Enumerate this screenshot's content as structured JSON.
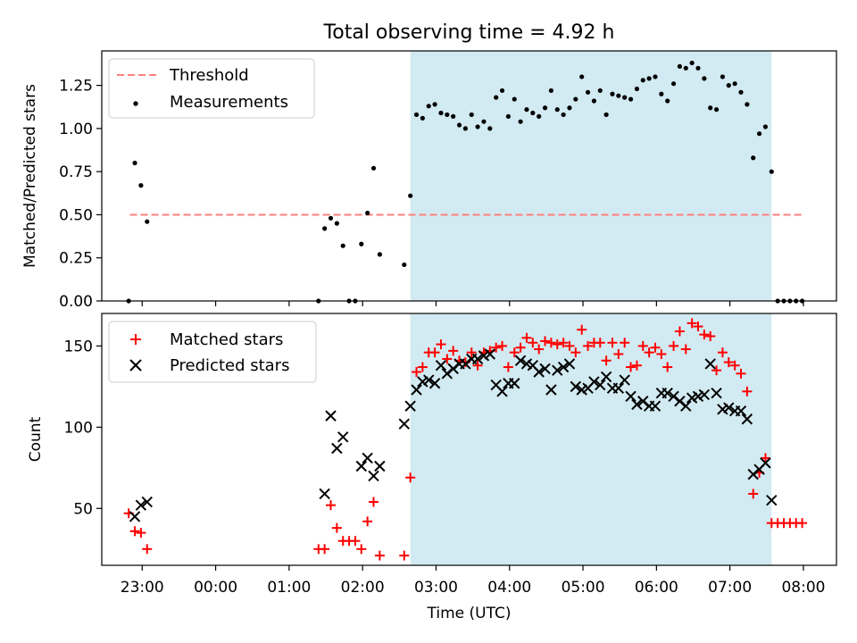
{
  "figure": {
    "title": "Total observing time = 4.92 h",
    "xlabel": "Time (UTC)"
  },
  "chart_data": [
    {
      "type": "scatter",
      "panel": "top",
      "ylabel": "Matched/Predicted stars",
      "xlim": [
        "22:27",
        "08:27"
      ],
      "ylim": [
        0,
        1.45
      ],
      "yticks": [
        "0.00",
        "0.25",
        "0.50",
        "0.75",
        "1.00",
        "1.25"
      ],
      "ytick_values": [
        0,
        0.25,
        0.5,
        0.75,
        1.0,
        1.25
      ],
      "grid": false,
      "legend_position": "top-left",
      "legend": [
        "Threshold",
        "Measurements"
      ],
      "shaded_interval": {
        "x": [
          "02:39",
          "07:34"
        ],
        "color": "#add8e6"
      },
      "series": [
        {
          "name": "Threshold",
          "type": "line",
          "style": "dashed",
          "color": "#ff7f7f",
          "points": [
            [
              "22:50",
              0.5
            ],
            [
              "08:00",
              0.5
            ]
          ]
        },
        {
          "name": "Measurements",
          "type": "scatter",
          "color": "#000000",
          "points": [
            [
              "22:49",
              0.0
            ],
            [
              "22:54",
              0.8
            ],
            [
              "22:59",
              0.67
            ],
            [
              "23:04",
              0.46
            ],
            [
              "01:24",
              0.0
            ],
            [
              "01:29",
              0.42
            ],
            [
              "01:34",
              0.48
            ],
            [
              "01:39",
              0.45
            ],
            [
              "01:44",
              0.32
            ],
            [
              "01:49",
              0.0
            ],
            [
              "01:54",
              0.0
            ],
            [
              "01:59",
              0.33
            ],
            [
              "02:04",
              0.51
            ],
            [
              "02:09",
              0.77
            ],
            [
              "02:14",
              0.27
            ],
            [
              "02:34",
              0.21
            ],
            [
              "02:39",
              0.61
            ],
            [
              "02:44",
              1.08
            ],
            [
              "02:49",
              1.06
            ],
            [
              "02:54",
              1.13
            ],
            [
              "02:59",
              1.14
            ],
            [
              "03:04",
              1.09
            ],
            [
              "03:09",
              1.08
            ],
            [
              "03:14",
              1.07
            ],
            [
              "03:19",
              1.02
            ],
            [
              "03:24",
              1.0
            ],
            [
              "03:29",
              1.08
            ],
            [
              "03:34",
              1.01
            ],
            [
              "03:39",
              1.04
            ],
            [
              "03:44",
              1.0
            ],
            [
              "03:49",
              1.18
            ],
            [
              "03:54",
              1.22
            ],
            [
              "03:59",
              1.07
            ],
            [
              "04:04",
              1.17
            ],
            [
              "04:09",
              1.04
            ],
            [
              "04:14",
              1.11
            ],
            [
              "04:19",
              1.09
            ],
            [
              "04:24",
              1.07
            ],
            [
              "04:29",
              1.12
            ],
            [
              "04:34",
              1.22
            ],
            [
              "04:39",
              1.11
            ],
            [
              "04:44",
              1.08
            ],
            [
              "04:49",
              1.12
            ],
            [
              "04:54",
              1.17
            ],
            [
              "04:59",
              1.3
            ],
            [
              "05:04",
              1.21
            ],
            [
              "05:09",
              1.16
            ],
            [
              "05:14",
              1.22
            ],
            [
              "05:19",
              1.08
            ],
            [
              "05:24",
              1.2
            ],
            [
              "05:29",
              1.19
            ],
            [
              "05:34",
              1.18
            ],
            [
              "05:39",
              1.17
            ],
            [
              "05:44",
              1.23
            ],
            [
              "05:49",
              1.28
            ],
            [
              "05:54",
              1.29
            ],
            [
              "05:59",
              1.3
            ],
            [
              "06:04",
              1.2
            ],
            [
              "06:09",
              1.16
            ],
            [
              "06:14",
              1.26
            ],
            [
              "06:19",
              1.36
            ],
            [
              "06:24",
              1.35
            ],
            [
              "06:29",
              1.38
            ],
            [
              "06:34",
              1.35
            ],
            [
              "06:39",
              1.29
            ],
            [
              "06:44",
              1.12
            ],
            [
              "06:49",
              1.11
            ],
            [
              "06:54",
              1.3
            ],
            [
              "06:59",
              1.25
            ],
            [
              "07:04",
              1.26
            ],
            [
              "07:09",
              1.21
            ],
            [
              "07:14",
              1.14
            ],
            [
              "07:19",
              0.83
            ],
            [
              "07:24",
              0.97
            ],
            [
              "07:29",
              1.01
            ],
            [
              "07:34",
              0.75
            ],
            [
              "07:39",
              0.0
            ],
            [
              "07:44",
              0.0
            ],
            [
              "07:49",
              0.0
            ],
            [
              "07:54",
              0.0
            ],
            [
              "07:59",
              0.0
            ]
          ]
        }
      ]
    },
    {
      "type": "scatter",
      "panel": "bottom",
      "ylabel": "Count",
      "xlabel": "Time (UTC)",
      "xlim": [
        "22:27",
        "08:27"
      ],
      "ylim": [
        15,
        170
      ],
      "yticks": [
        "50",
        "100",
        "150"
      ],
      "ytick_values": [
        50,
        100,
        150
      ],
      "xticks": [
        "23:00",
        "00:00",
        "01:00",
        "02:00",
        "03:00",
        "04:00",
        "05:00",
        "06:00",
        "07:00",
        "08:00"
      ],
      "grid": false,
      "legend_position": "top-left",
      "legend": [
        "Matched stars",
        "Predicted stars"
      ],
      "shaded_interval": {
        "x": [
          "02:39",
          "07:34"
        ],
        "color": "#add8e6"
      },
      "series": [
        {
          "name": "Matched stars",
          "marker": "+",
          "color": "#ff0000",
          "points": [
            [
              "22:49",
              47
            ],
            [
              "22:54",
              36
            ],
            [
              "22:59",
              35
            ],
            [
              "23:04",
              25
            ],
            [
              "01:24",
              25
            ],
            [
              "01:29",
              25
            ],
            [
              "01:34",
              52
            ],
            [
              "01:39",
              38
            ],
            [
              "01:44",
              30
            ],
            [
              "01:49",
              30
            ],
            [
              "01:54",
              30
            ],
            [
              "01:59",
              25
            ],
            [
              "02:04",
              42
            ],
            [
              "02:09",
              54
            ],
            [
              "02:14",
              21
            ],
            [
              "02:34",
              21
            ],
            [
              "02:39",
              69
            ],
            [
              "02:44",
              134
            ],
            [
              "02:49",
              137
            ],
            [
              "02:54",
              146
            ],
            [
              "02:59",
              146
            ],
            [
              "03:04",
              151
            ],
            [
              "03:09",
              142
            ],
            [
              "03:14",
              147
            ],
            [
              "03:19",
              141
            ],
            [
              "03:24",
              140
            ],
            [
              "03:29",
              146
            ],
            [
              "03:34",
              138
            ],
            [
              "03:39",
              146
            ],
            [
              "03:44",
              147
            ],
            [
              "03:49",
              149
            ],
            [
              "03:54",
              150
            ],
            [
              "03:59",
              137
            ],
            [
              "04:04",
              146
            ],
            [
              "04:09",
              149
            ],
            [
              "04:14",
              155
            ],
            [
              "04:19",
              152
            ],
            [
              "04:24",
              148
            ],
            [
              "04:29",
              153
            ],
            [
              "04:34",
              152
            ],
            [
              "04:39",
              151
            ],
            [
              "04:44",
              152
            ],
            [
              "04:49",
              150
            ],
            [
              "04:54",
              146
            ],
            [
              "04:59",
              160
            ],
            [
              "05:04",
              150
            ],
            [
              "05:09",
              152
            ],
            [
              "05:14",
              152
            ],
            [
              "05:19",
              141
            ],
            [
              "05:24",
              152
            ],
            [
              "05:29",
              145
            ],
            [
              "05:34",
              152
            ],
            [
              "05:39",
              137
            ],
            [
              "05:44",
              138
            ],
            [
              "05:49",
              150
            ],
            [
              "05:54",
              146
            ],
            [
              "05:59",
              149
            ],
            [
              "06:04",
              145
            ],
            [
              "06:09",
              137
            ],
            [
              "06:14",
              150
            ],
            [
              "06:19",
              159
            ],
            [
              "06:24",
              148
            ],
            [
              "06:29",
              164
            ],
            [
              "06:34",
              162
            ],
            [
              "06:39",
              157
            ],
            [
              "06:44",
              156
            ],
            [
              "06:49",
              135
            ],
            [
              "06:54",
              146
            ],
            [
              "06:59",
              140
            ],
            [
              "07:04",
              138
            ],
            [
              "07:09",
              133
            ],
            [
              "07:14",
              122
            ],
            [
              "07:19",
              59
            ],
            [
              "07:24",
              72
            ],
            [
              "07:29",
              81
            ],
            [
              "07:34",
              41
            ],
            [
              "07:39",
              41
            ],
            [
              "07:44",
              41
            ],
            [
              "07:49",
              41
            ],
            [
              "07:54",
              41
            ],
            [
              "07:59",
              41
            ]
          ]
        },
        {
          "name": "Predicted stars",
          "marker": "x",
          "color": "#000000",
          "points": [
            [
              "22:54",
              45
            ],
            [
              "22:59",
              52
            ],
            [
              "23:04",
              54
            ],
            [
              "01:29",
              59
            ],
            [
              "01:34",
              107
            ],
            [
              "01:39",
              87
            ],
            [
              "01:44",
              94
            ],
            [
              "01:59",
              76
            ],
            [
              "02:04",
              81
            ],
            [
              "02:09",
              70
            ],
            [
              "02:14",
              76
            ],
            [
              "02:34",
              102
            ],
            [
              "02:39",
              113
            ],
            [
              "02:44",
              123
            ],
            [
              "02:49",
              128
            ],
            [
              "02:54",
              129
            ],
            [
              "02:59",
              127
            ],
            [
              "03:04",
              138
            ],
            [
              "03:09",
              133
            ],
            [
              "03:14",
              136
            ],
            [
              "03:19",
              139
            ],
            [
              "03:24",
              139
            ],
            [
              "03:29",
              142
            ],
            [
              "03:34",
              142
            ],
            [
              "03:39",
              144
            ],
            [
              "03:44",
              145
            ],
            [
              "03:49",
              126
            ],
            [
              "03:54",
              122
            ],
            [
              "03:59",
              127
            ],
            [
              "04:04",
              127
            ],
            [
              "04:09",
              141
            ],
            [
              "04:14",
              139
            ],
            [
              "04:19",
              138
            ],
            [
              "04:24",
              134
            ],
            [
              "04:29",
              136
            ],
            [
              "04:34",
              123
            ],
            [
              "04:39",
              135
            ],
            [
              "04:44",
              137
            ],
            [
              "04:49",
              139
            ],
            [
              "04:54",
              125
            ],
            [
              "04:59",
              123
            ],
            [
              "05:04",
              124
            ],
            [
              "05:09",
              128
            ],
            [
              "05:14",
              126
            ],
            [
              "05:19",
              131
            ],
            [
              "05:24",
              124
            ],
            [
              "05:29",
              124
            ],
            [
              "05:34",
              129
            ],
            [
              "05:39",
              119
            ],
            [
              "05:44",
              114
            ],
            [
              "05:49",
              116
            ],
            [
              "05:54",
              113
            ],
            [
              "05:59",
              113
            ],
            [
              "06:04",
              121
            ],
            [
              "06:09",
              121
            ],
            [
              "06:14",
              119
            ],
            [
              "06:19",
              116
            ],
            [
              "06:24",
              113
            ],
            [
              "06:29",
              118
            ],
            [
              "06:34",
              119
            ],
            [
              "06:39",
              120
            ],
            [
              "06:44",
              139
            ],
            [
              "06:49",
              121
            ],
            [
              "06:54",
              111
            ],
            [
              "06:59",
              112
            ],
            [
              "07:04",
              110
            ],
            [
              "07:09",
              110
            ],
            [
              "07:14",
              105
            ],
            [
              "07:19",
              71
            ],
            [
              "07:24",
              74
            ],
            [
              "07:29",
              78
            ],
            [
              "07:34",
              55
            ]
          ]
        }
      ]
    }
  ]
}
